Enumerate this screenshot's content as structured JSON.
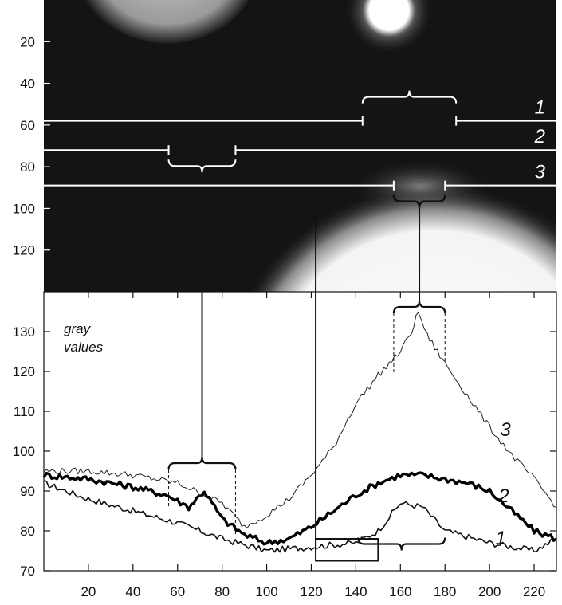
{
  "chart_data": [
    {
      "type": "heatmap",
      "ylim": [
        0,
        140
      ],
      "xlim": [
        0,
        230
      ],
      "y_ticks": [
        "20",
        "40",
        "60",
        "80",
        "100",
        "120"
      ],
      "profile_labels": [
        "1",
        "2",
        "3"
      ],
      "profile_rows": [
        58,
        72,
        89
      ],
      "masked_x_ranges": [
        [
          143,
          185
        ],
        [
          56,
          86
        ],
        [
          157,
          180
        ]
      ]
    },
    {
      "type": "line",
      "ylabel": "gray values",
      "xlim": [
        0,
        230
      ],
      "ylim": [
        70,
        140
      ],
      "grid": false,
      "x_ticks": [
        "20",
        "40",
        "60",
        "80",
        "100",
        "120",
        "140",
        "160",
        "180",
        "200",
        "220"
      ],
      "y_ticks": [
        "70",
        "80",
        "90",
        "100",
        "110",
        "120",
        "130"
      ],
      "series": [
        {
          "name": "1",
          "x": [
            0,
            20,
            40,
            60,
            80,
            100,
            120,
            140,
            150,
            160,
            170,
            180,
            200,
            220,
            230
          ],
          "y": [
            92,
            88,
            85,
            82,
            78,
            75,
            76,
            77,
            80,
            87,
            86,
            80,
            77,
            75,
            78
          ]
        },
        {
          "name": "2",
          "x": [
            0,
            20,
            40,
            55,
            65,
            72,
            80,
            90,
            100,
            110,
            120,
            130,
            140,
            150,
            160,
            170,
            180,
            190,
            200,
            210,
            220,
            230
          ],
          "y": [
            94,
            93,
            91,
            89,
            86,
            90,
            83,
            79,
            77,
            78,
            81,
            85,
            89,
            92,
            94,
            94,
            93,
            92,
            90,
            85,
            80,
            78
          ]
        },
        {
          "name": "3",
          "x": [
            0,
            20,
            40,
            60,
            80,
            90,
            100,
            110,
            120,
            130,
            140,
            150,
            160,
            165,
            168,
            172,
            180,
            190,
            200,
            210,
            220,
            230
          ],
          "y": [
            95,
            95,
            94,
            92,
            87,
            81,
            84,
            88,
            94,
            101,
            112,
            119,
            125,
            130,
            135,
            129,
            122,
            114,
            106,
            99,
            93,
            86
          ]
        }
      ],
      "series_styles": [
        {
          "name": "1",
          "color": "#111111",
          "width": 1.6
        },
        {
          "name": "2",
          "color": "#000000",
          "width": 3.4
        },
        {
          "name": "3",
          "color": "#222222",
          "width": 1.0
        }
      ],
      "brackets": [
        {
          "x1": 56,
          "x2": 86,
          "y": 97
        },
        {
          "x1": 157,
          "x2": 180,
          "y": 139
        },
        {
          "x1": 122,
          "x2": 150,
          "y": 76
        }
      ]
    }
  ]
}
